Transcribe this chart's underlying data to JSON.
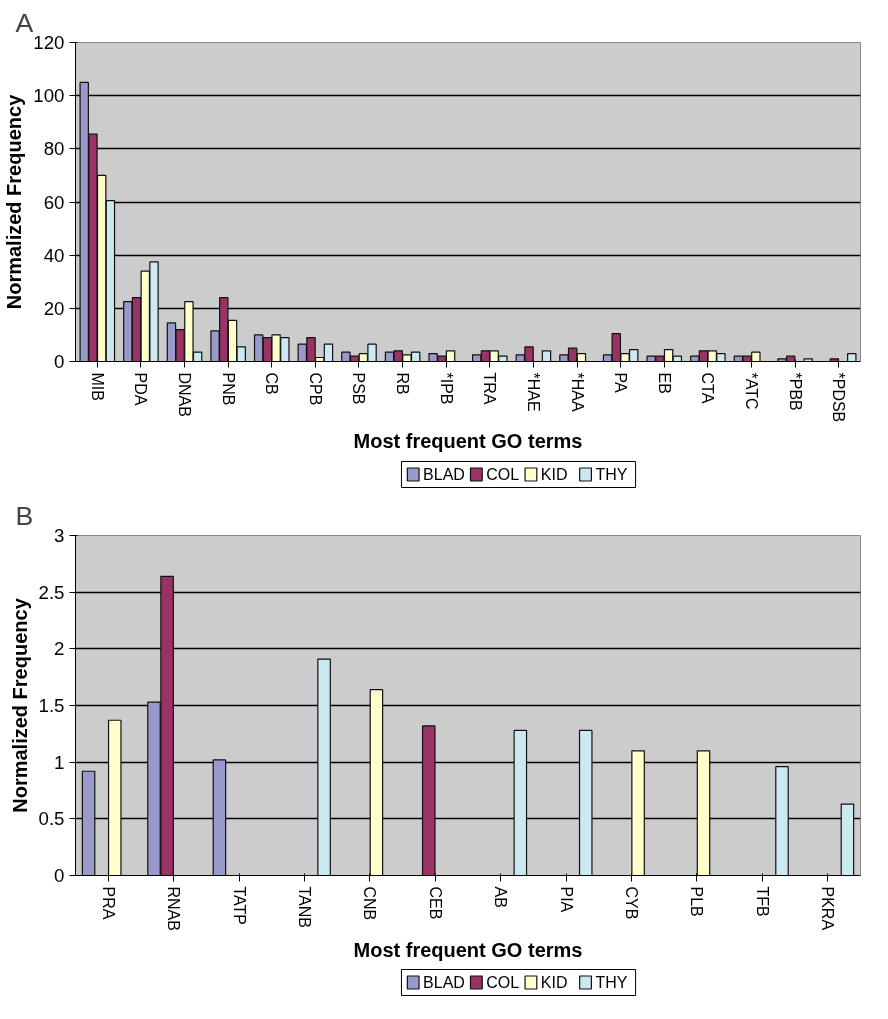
{
  "chart_data": [
    {
      "type": "bar",
      "annotations": [
        "A"
      ],
      "xlabel": "Most frequent GO terms",
      "ylabel": "Normalized Frequency",
      "categories": [
        "MIB",
        "PDA",
        "DNAB",
        "PNB",
        "CB",
        "CPB",
        "PSB",
        "RB",
        "*IPB",
        "TRA",
        "*HAE",
        "*HAA",
        "PA",
        "EB",
        "CTA",
        "*ATC",
        "*PBB",
        "*PDSB"
      ],
      "series": [
        {
          "name": "BLAD",
          "color": "#9999cc",
          "values": [
            105,
            22.5,
            14.5,
            11.5,
            10,
            6.5,
            3.5,
            3.5,
            3,
            2.5,
            2.5,
            2.5,
            2.5,
            2,
            2,
            2,
            1,
            null
          ]
        },
        {
          "name": "COL",
          "color": "#993366",
          "values": [
            85.5,
            24,
            12,
            24,
            9,
            9,
            2,
            4,
            2,
            4,
            5.5,
            5,
            10.5,
            2,
            4,
            2,
            2,
            1
          ]
        },
        {
          "name": "KID",
          "color": "#ffffcc",
          "values": [
            70,
            34,
            22.5,
            15.5,
            10,
            1.5,
            3,
            2.5,
            4,
            4,
            null,
            3,
            3,
            4.5,
            4,
            3.5,
            null,
            null
          ]
        },
        {
          "name": "THY",
          "color": "#cce8f0",
          "values": [
            60.5,
            37.5,
            3.5,
            5.5,
            9,
            6.5,
            6.5,
            3.5,
            null,
            2,
            4,
            null,
            4.5,
            2,
            3,
            null,
            1,
            3
          ]
        }
      ],
      "ylim": [
        0,
        120
      ],
      "yticks": [
        0,
        20,
        40,
        60,
        80,
        100,
        120
      ],
      "grid": "y",
      "legend": "bottom"
    },
    {
      "type": "bar",
      "annotations": [
        "B"
      ],
      "xlabel": "Most frequent GO terms",
      "ylabel": "Normalized Frequency",
      "categories": [
        "PRA",
        "RNAB",
        "TATP",
        "TANB",
        "CNB",
        "CEB",
        "AB",
        "PIA",
        "CYB",
        "PLB",
        "TFB",
        "PKRA"
      ],
      "series": [
        {
          "name": "BLAD",
          "color": "#9999cc",
          "values": [
            0.92,
            1.53,
            1.02,
            null,
            null,
            null,
            null,
            null,
            null,
            null,
            null,
            null
          ]
        },
        {
          "name": "COL",
          "color": "#993366",
          "values": [
            null,
            2.64,
            null,
            null,
            null,
            1.32,
            null,
            null,
            null,
            null,
            null,
            null
          ]
        },
        {
          "name": "KID",
          "color": "#ffffcc",
          "values": [
            1.37,
            null,
            null,
            null,
            1.64,
            null,
            null,
            null,
            1.1,
            1.1,
            null,
            null
          ]
        },
        {
          "name": "THY",
          "color": "#cce8f0",
          "values": [
            null,
            null,
            null,
            1.91,
            null,
            null,
            1.28,
            1.28,
            null,
            null,
            0.96,
            0.63
          ]
        }
      ],
      "ylim": [
        0,
        3
      ],
      "yticks": [
        0,
        0.5,
        1,
        1.5,
        2,
        2.5,
        3
      ],
      "grid": "y",
      "legend": "bottom"
    }
  ]
}
